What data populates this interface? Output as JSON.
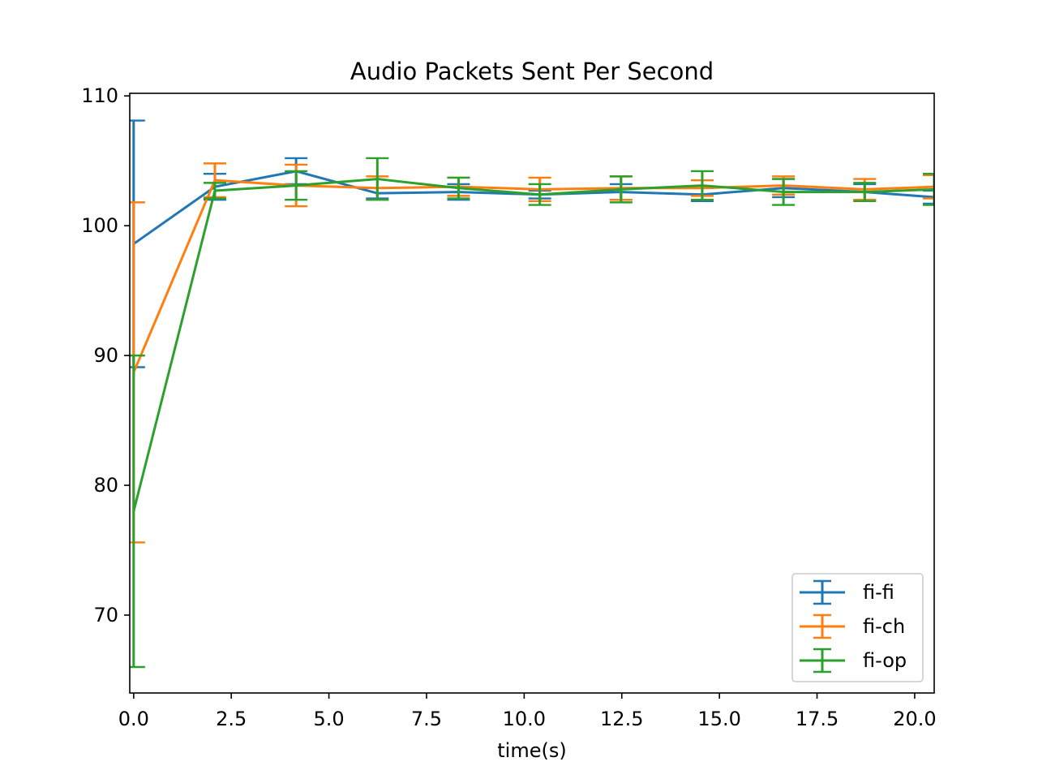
{
  "chart_data": {
    "type": "line",
    "title": "Audio Packets Sent Per Second",
    "xlabel": "time(s)",
    "ylabel": "",
    "xlim": [
      -0.1,
      20.5
    ],
    "ylim": [
      64,
      110.2
    ],
    "xticks": [
      0.0,
      2.5,
      5.0,
      7.5,
      10.0,
      12.5,
      15.0,
      17.5,
      20.0
    ],
    "xtick_labels": [
      "0.0",
      "2.5",
      "5.0",
      "7.5",
      "10.0",
      "12.5",
      "15.0",
      "17.5",
      "20.0"
    ],
    "yticks": [
      70,
      80,
      90,
      100,
      110
    ],
    "ytick_labels": [
      "70",
      "80",
      "90",
      "100",
      "110"
    ],
    "grid": false,
    "legend_position": "bottom-right",
    "error_bars": true,
    "series": [
      {
        "name": "fi-fi",
        "color": "#1f77b4",
        "x": [
          0.0,
          2.08,
          4.16,
          6.24,
          8.32,
          10.4,
          12.48,
          14.56,
          16.64,
          18.72,
          20.5
        ],
        "y": [
          98.6,
          103.0,
          104.2,
          102.5,
          102.6,
          102.4,
          102.6,
          102.4,
          102.9,
          102.6,
          102.2
        ],
        "err": [
          9.5,
          1.0,
          1.0,
          0.4,
          0.6,
          0.3,
          0.6,
          0.5,
          0.7,
          0.6,
          0.5
        ]
      },
      {
        "name": "fi-ch",
        "color": "#ff7f0e",
        "x": [
          0.0,
          2.08,
          4.16,
          6.24,
          8.32,
          10.4,
          12.48,
          14.56,
          16.64,
          18.72,
          20.5
        ],
        "y": [
          88.7,
          103.5,
          103.1,
          102.9,
          103.0,
          102.8,
          102.9,
          102.9,
          103.1,
          102.8,
          103.0
        ],
        "err": [
          13.1,
          1.3,
          1.6,
          0.9,
          0.7,
          0.9,
          0.9,
          0.6,
          0.7,
          0.8,
          0.9
        ]
      },
      {
        "name": "fi-op",
        "color": "#2ca02c",
        "x": [
          0.0,
          2.08,
          4.16,
          6.24,
          8.32,
          10.4,
          12.48,
          14.56,
          16.64,
          18.72,
          20.5
        ],
        "y": [
          78.0,
          102.7,
          103.1,
          103.6,
          102.9,
          102.4,
          102.8,
          103.1,
          102.6,
          102.6,
          102.8
        ],
        "err": [
          12.0,
          0.6,
          1.1,
          1.6,
          0.8,
          0.8,
          1.0,
          1.1,
          1.0,
          0.7,
          1.2
        ]
      }
    ]
  }
}
